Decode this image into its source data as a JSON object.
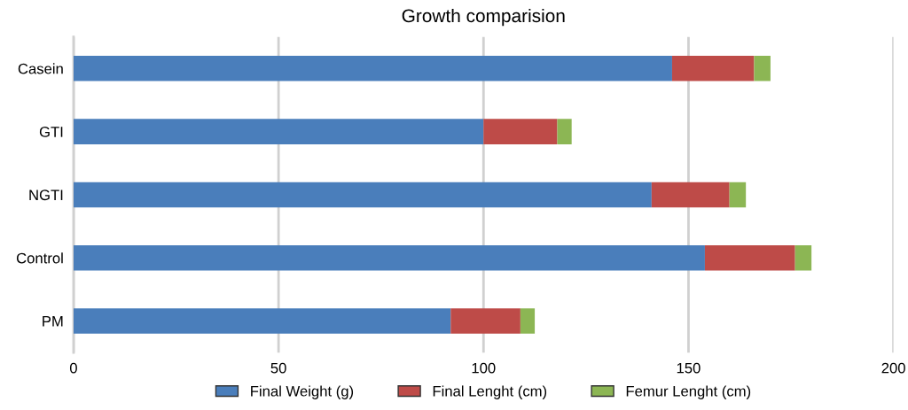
{
  "chart_data": {
    "type": "bar",
    "orientation": "horizontal",
    "stacked": true,
    "title": "Growth comparision",
    "categories": [
      "Casein",
      "GTI",
      "NGTI",
      "Control",
      "PM"
    ],
    "series": [
      {
        "name": "Final Weight (g)",
        "color": "#4a7ebb",
        "values": [
          146,
          100,
          141,
          154,
          92
        ]
      },
      {
        "name": "Final Lenght (cm)",
        "color": "#be4b48",
        "values": [
          20,
          18,
          19,
          22,
          17
        ]
      },
      {
        "name": "Femur Lenght (cm)",
        "color": "#8cb654",
        "values": [
          4,
          3.5,
          4,
          4,
          3.5
        ]
      }
    ],
    "xlim": [
      0,
      200
    ],
    "xticks": [
      0,
      50,
      100,
      150,
      200
    ],
    "grid": "x",
    "legend": "bottom"
  }
}
